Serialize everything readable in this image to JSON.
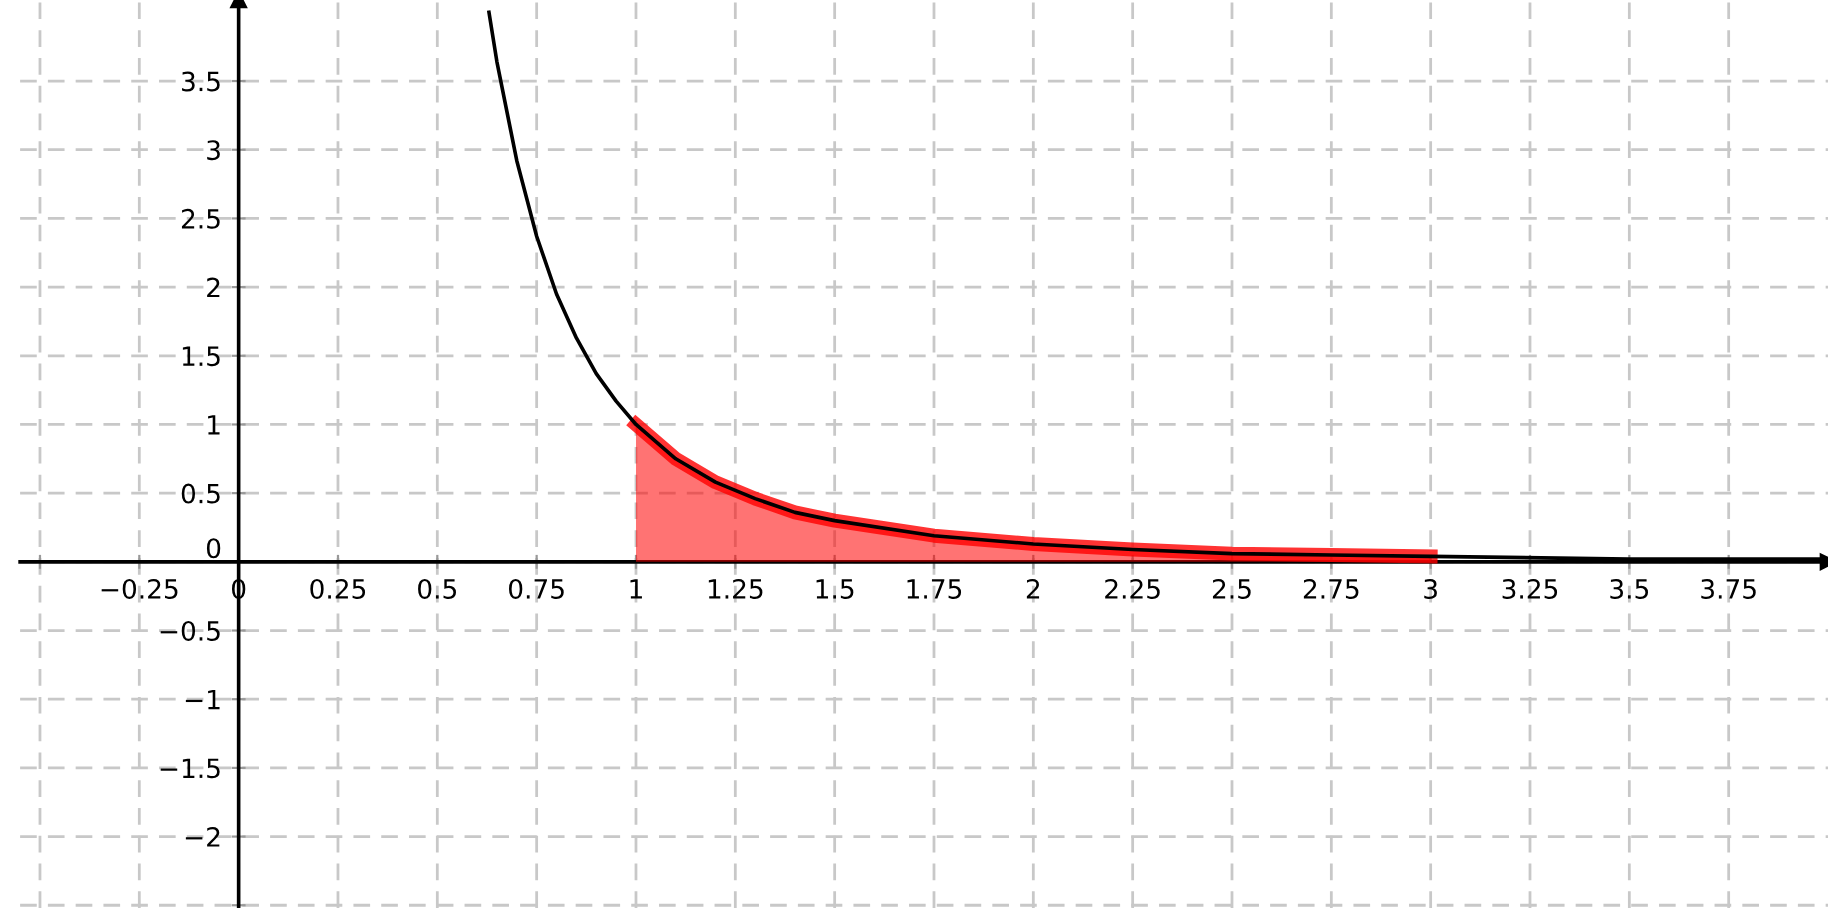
{
  "chart_data": {
    "type": "line",
    "series": [
      {
        "color": "#000000",
        "x": [
          0.63,
          0.65,
          0.7,
          0.75,
          0.8,
          0.85,
          0.9,
          0.95,
          1,
          1.1,
          1.2,
          1.3,
          1.4,
          1.5,
          1.75,
          2,
          2.25,
          2.5,
          2.75,
          3,
          3.5,
          4
        ],
        "values": [
          4.0,
          3.64,
          2.92,
          2.37,
          1.95,
          1.63,
          1.37,
          1.17,
          1,
          0.75,
          0.58,
          0.46,
          0.36,
          0.3,
          0.19,
          0.13,
          0.09,
          0.06,
          0.05,
          0.04,
          0.02,
          0.02
        ]
      },
      {
        "type": "area",
        "color": "#ff0000",
        "x": [
          1,
          1.1,
          1.2,
          1.3,
          1.4,
          1.5,
          1.75,
          2,
          2.25,
          2.5,
          2.75,
          3
        ],
        "values": [
          1,
          0.75,
          0.58,
          0.46,
          0.36,
          0.3,
          0.19,
          0.13,
          0.09,
          0.06,
          0.05,
          0.04
        ]
      }
    ],
    "xlim": [
      -0.55,
      4.0
    ],
    "ylim": [
      -2.52,
      4.09
    ],
    "xticks": [
      {
        "value": -0.5,
        "label": null
      },
      -0.25,
      0,
      0.25,
      0.5,
      0.75,
      1,
      1.25,
      1.5,
      1.75,
      2,
      2.25,
      2.5,
      2.75,
      3,
      3.25,
      3.5,
      3.75
    ],
    "yticks": [
      {
        "value": -2.5,
        "label": null
      },
      -2,
      -1.5,
      -1,
      -0.5,
      0,
      0.5,
      1,
      1.5,
      2,
      2.5,
      3,
      3.5
    ],
    "grid": true,
    "line_style": "solid",
    "marker": "none"
  }
}
